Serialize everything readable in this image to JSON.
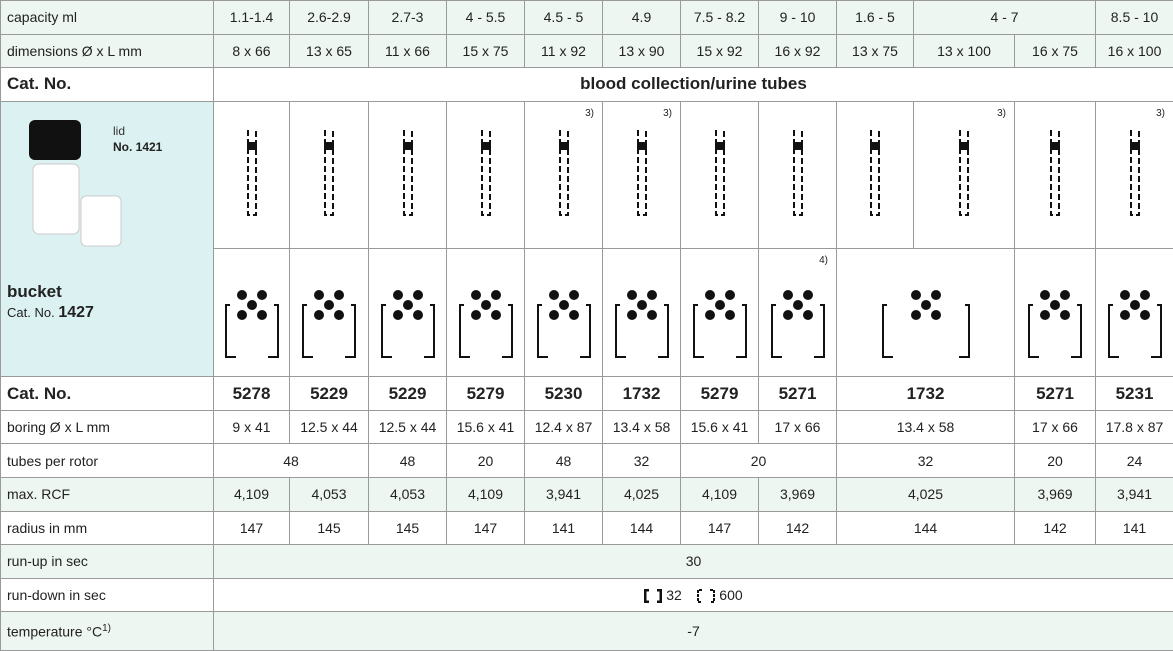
{
  "capacity": {
    "label": "capacity ml",
    "values": [
      "1.1-1.4",
      "2.6-2.9",
      "2.7-3",
      "4 - 5.5",
      "4.5 - 5",
      "4.9",
      "7.5 - 8.2",
      "9 - 10",
      "1.6 - 5",
      "4 - 7",
      "8.5 - 10"
    ]
  },
  "dimensions": {
    "label": "dimensions Ø x L mm",
    "values": [
      "8 x 66",
      "13 x 65",
      "11 x 66",
      "15 x 75",
      "11 x 92",
      "13 x 90",
      "15 x 92",
      "16 x 92",
      "13 x 75",
      "13 x 100",
      "16 x 75",
      "16 x 100"
    ]
  },
  "group": {
    "label": "Cat. No.",
    "title": "blood collection/urine tubes"
  },
  "bucket": {
    "lid_label": "lid",
    "lid_number": "No. 1421",
    "title": "bucket",
    "cat_label": "Cat. No.",
    "cat_number": "1427"
  },
  "tube_notes": [
    "3)",
    "3)",
    "3)",
    "3)"
  ],
  "adapter_note": "4)",
  "cat_numbers": {
    "label": "Cat. No.",
    "values": [
      "5278",
      "5229",
      "5229",
      "5279",
      "5230",
      "1732",
      "5279",
      "5271",
      "1732",
      "5271",
      "5231"
    ]
  },
  "boring": {
    "label": "boring Ø x L mm",
    "values": [
      "9 x 41",
      "12.5 x 44",
      "12.5 x 44",
      "15.6 x 41",
      "12.4 x 87",
      "13.4 x 58",
      "15.6 x 41",
      "17 x 66",
      "13.4 x 58",
      "17 x 66",
      "17.8 x 87"
    ]
  },
  "tubes_per_rotor": {
    "label": "tubes per rotor",
    "values": [
      48,
      48,
      20,
      48,
      32,
      20,
      32,
      20,
      24
    ]
  },
  "max_rcf": {
    "label": "max. RCF",
    "values": [
      "4,109",
      "4,053",
      "4,053",
      "4,109",
      "3,941",
      "4,025",
      "4,109",
      "3,969",
      "4,025",
      "3,969",
      "3,941"
    ]
  },
  "radius": {
    "label": "radius in mm",
    "values": [
      147,
      145,
      145,
      147,
      141,
      144,
      147,
      142,
      144,
      142,
      141
    ]
  },
  "run_up": {
    "label": "run-up in sec",
    "value": 30
  },
  "run_down": {
    "label": "run-down in sec",
    "values": [
      32,
      600
    ]
  },
  "temperature": {
    "label": "temperature °C",
    "note": "1)",
    "value": -7
  }
}
